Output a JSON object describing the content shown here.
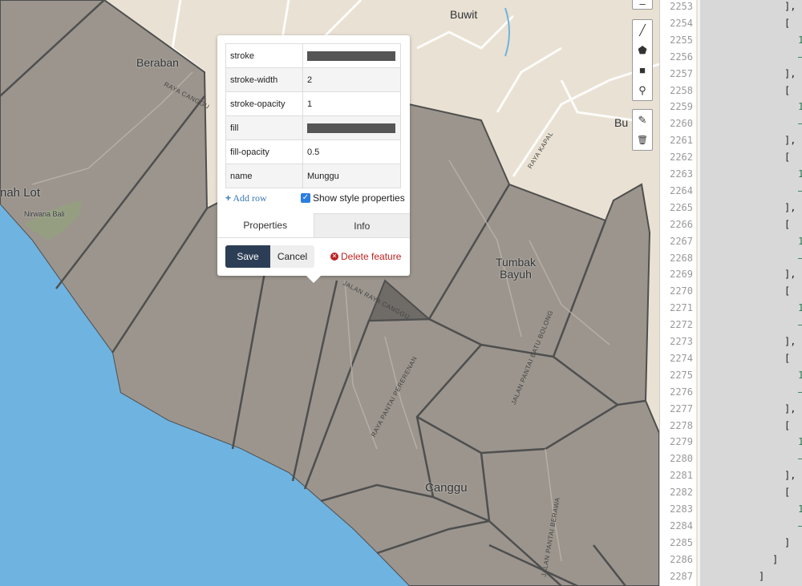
{
  "colors": {
    "land": "#e9e1d3",
    "polygon_fill": "#9b958d",
    "polygon_stroke": "#4f4f4f",
    "ocean": "#6fb3e0",
    "save_button": "#2c3e55",
    "delete": "#b22222"
  },
  "map": {
    "labels": {
      "buwit": "Buwit",
      "beraban": "Beraban",
      "tanah_lot": "nah Lot",
      "nirwana": "Nirwana Bali",
      "bu": "Bu",
      "tumbak": "Tumbak",
      "bayuh": "Bayuh",
      "canggu": "Canggu"
    },
    "roads": {
      "raya_canggu": "RAYA CANGGU",
      "raya_kapal": "RAYA KAPAL",
      "jalan_raya_canggu": "JALAN RAYA CANGGU",
      "pererenan": "RAYA PANTAI PERERENAN",
      "batu_bolong": "JALAN PANTAI BATU BOLONG",
      "berawa": "JALAN PANTAI BERAWA"
    }
  },
  "toolbar": {
    "tools": [
      {
        "name": "draw-line-icon",
        "glyph": "╱"
      },
      {
        "name": "draw-polygon-icon",
        "glyph": "⬟"
      },
      {
        "name": "draw-rectangle-icon",
        "glyph": "■"
      },
      {
        "name": "draw-marker-icon",
        "glyph": "⚲"
      }
    ],
    "edit": [
      {
        "name": "edit-icon",
        "glyph": "✎"
      },
      {
        "name": "trash-icon",
        "glyph": "🗑"
      }
    ]
  },
  "popup": {
    "rows": [
      {
        "key": "stroke",
        "value": "",
        "swatch": "#555555"
      },
      {
        "key": "stroke-width",
        "value": "2"
      },
      {
        "key": "stroke-opacity",
        "value": "1"
      },
      {
        "key": "fill",
        "value": "",
        "swatch": "#555555"
      },
      {
        "key": "fill-opacity",
        "value": "0.5"
      },
      {
        "key": "name",
        "value": "Munggu"
      }
    ],
    "add_row": "Add row",
    "show_style": "Show style properties",
    "show_style_checked": true,
    "tabs": [
      "Properties",
      "Info"
    ],
    "active_tab": "Properties",
    "save": "Save",
    "cancel": "Cancel",
    "delete": "Delete feature"
  },
  "editor": {
    "line_numbers": [
      "2253",
      "2254",
      "2255",
      "2256",
      "2257",
      "2258",
      "2259",
      "2260",
      "2261",
      "2262",
      "2263",
      "2264",
      "2265",
      "2266",
      "2267",
      "2268",
      "2269",
      "2270",
      "2271",
      "2272",
      "2273",
      "2274",
      "2275",
      "2276",
      "2277",
      "2278",
      "2279",
      "2280",
      "2281",
      "2282",
      "2283",
      "2284",
      "2285",
      "2286",
      "2287"
    ],
    "lines": [
      "],",
      "[",
      "1",
      "–",
      "],",
      "[",
      "1",
      "–",
      "],",
      "[",
      "1",
      "–",
      "],",
      "[",
      "1",
      "–",
      "],",
      "[",
      "1",
      "–",
      "],",
      "[",
      "1",
      "–",
      "],",
      "[",
      "1",
      "–",
      "],",
      "[",
      "1",
      "–",
      "]",
      "]",
      "]"
    ]
  }
}
